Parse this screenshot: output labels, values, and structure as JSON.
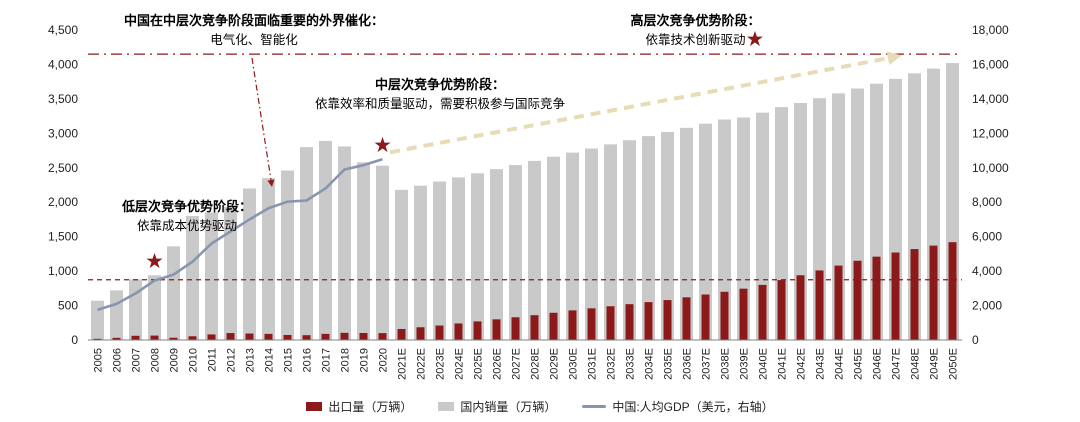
{
  "chart_data": {
    "type": "bar+line",
    "categories": [
      "2005",
      "2006",
      "2007",
      "2008",
      "2009",
      "2010",
      "2011",
      "2012",
      "2013",
      "2014",
      "2015",
      "2016",
      "2017",
      "2018",
      "2019",
      "2020",
      "2021E",
      "2022E",
      "2023E",
      "2024E",
      "2025E",
      "2026E",
      "2027E",
      "2028E",
      "2029E",
      "2030E",
      "2031E",
      "2032E",
      "2033E",
      "2034E",
      "2035E",
      "2036E",
      "2037E",
      "2038E",
      "2039E",
      "2040E",
      "2041E",
      "2042E",
      "2043E",
      "2044E",
      "2045E",
      "2046E",
      "2047E",
      "2048E",
      "2049E",
      "2050E"
    ],
    "series": [
      {
        "name": "出口量（万辆）",
        "type": "bar",
        "axis": "left",
        "color": "#8d1a1a",
        "values": [
          17,
          31,
          61,
          64,
          33,
          54,
          81,
          101,
          94,
          89,
          73,
          70,
          89,
          104,
          102,
          100,
          160,
          185,
          210,
          240,
          270,
          300,
          330,
          360,
          395,
          430,
          460,
          490,
          520,
          550,
          580,
          620,
          660,
          700,
          745,
          800,
          870,
          940,
          1010,
          1080,
          1150,
          1210,
          1270,
          1320,
          1370,
          1420
        ]
      },
      {
        "name": "国内销量（万辆）",
        "type": "bar",
        "axis": "left",
        "color": "#c9c9c9",
        "values": [
          570,
          720,
          880,
          940,
          1360,
          1800,
          1850,
          1930,
          2200,
          2350,
          2460,
          2800,
          2890,
          2810,
          2580,
          2530,
          2180,
          2240,
          2300,
          2360,
          2420,
          2480,
          2540,
          2600,
          2660,
          2720,
          2780,
          2840,
          2900,
          2960,
          3020,
          3080,
          3140,
          3200,
          3230,
          3300,
          3380,
          3440,
          3510,
          3580,
          3650,
          3720,
          3790,
          3870,
          3940,
          4020
        ]
      },
      {
        "name": "中国:人均GDP（美元，右轴）",
        "type": "line",
        "axis": "right",
        "color": "#8795ae",
        "values": [
          1750,
          2100,
          2700,
          3450,
          3800,
          4550,
          5600,
          6300,
          7000,
          7650,
          8030,
          8100,
          8800,
          9900,
          10150,
          10500,
          null,
          null,
          null,
          null,
          null,
          null,
          null,
          null,
          null,
          null,
          null,
          null,
          null,
          null,
          null,
          null,
          null,
          null,
          null,
          null,
          null,
          null,
          null,
          null,
          null,
          null,
          null,
          null,
          null,
          null
        ]
      }
    ],
    "left_axis": {
      "min": 0,
      "max": 4500,
      "ticks": [
        "0",
        "500",
        "1,000",
        "1,500",
        "2,000",
        "2,500",
        "3,000",
        "3,500",
        "4,000",
        "4,500"
      ]
    },
    "right_axis": {
      "min": 0,
      "max": 18000,
      "ticks": [
        "0",
        "2,000",
        "4,000",
        "6,000",
        "8,000",
        "10,000",
        "12,000",
        "14,000",
        "16,000",
        "18,000"
      ]
    },
    "annotations": {
      "low_stage": {
        "title": "低层次竞争优势阶段：",
        "body": "依靠成本优势驱动"
      },
      "catalyst": {
        "title": "中国在中层次竞争阶段面临重要的外界催化：",
        "body": "电气化、智能化"
      },
      "mid_stage": {
        "title": "中层次竞争优势阶段：",
        "body": "依靠效率和质量驱动，需要积极参与国际竞争"
      },
      "high_stage": {
        "title": "高层次竞争优势阶段：",
        "body": "依靠技术创新驱动"
      }
    },
    "reference_lines": [
      {
        "axis": "right",
        "value": 3500,
        "style": "dashed",
        "color": "#8d1a1a"
      },
      {
        "axis": "right",
        "value": 16600,
        "style": "dashdot",
        "color": "#8d1a1a"
      }
    ],
    "trend_arrow": {
      "axis": "right",
      "from_index": 15.4,
      "from_value": 10900,
      "to_index": 41.8,
      "to_value": 16400,
      "color": "#e7dcb6"
    },
    "stars": {
      "color": "#8d1a1a",
      "points": [
        {
          "index": 3,
          "value": 1150
        },
        {
          "index": 15,
          "value": 2830
        },
        {
          "index": 34.6,
          "value": 4370
        }
      ]
    },
    "legend_position": "bottom"
  }
}
